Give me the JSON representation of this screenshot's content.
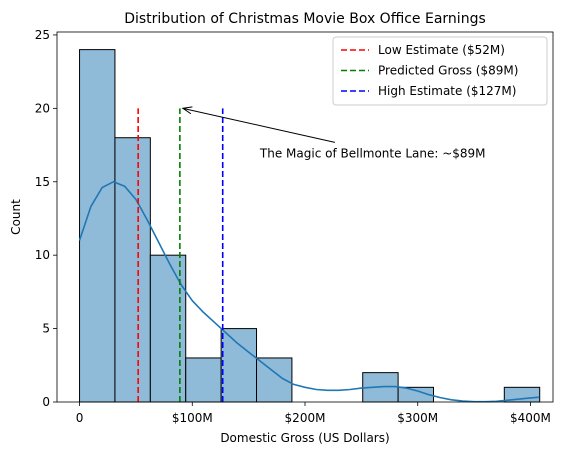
{
  "chart_data": {
    "type": "bar",
    "title": "Distribution of Christmas Movie Box Office Earnings",
    "xlabel": "Domestic Gross (US Dollars)",
    "ylabel": "Count",
    "xlim": [
      -20,
      420
    ],
    "ylim": [
      0,
      25.2
    ],
    "x_ticks": [
      {
        "value": 0,
        "label": "0"
      },
      {
        "value": 100,
        "label": "$100M"
      },
      {
        "value": 200,
        "label": "$200M"
      },
      {
        "value": 300,
        "label": "$300M"
      },
      {
        "value": 400,
        "label": "$400M"
      }
    ],
    "y_ticks": [
      {
        "value": 0,
        "label": "0"
      },
      {
        "value": 5,
        "label": "5"
      },
      {
        "value": 10,
        "label": "10"
      },
      {
        "value": 15,
        "label": "15"
      },
      {
        "value": 20,
        "label": "20"
      },
      {
        "value": 25,
        "label": "25"
      }
    ],
    "histogram": {
      "bin_edges": [
        0,
        31.4,
        62.8,
        94.2,
        125.6,
        157.0,
        188.4,
        219.8,
        251.2,
        282.6,
        314.0,
        345.4,
        376.8,
        408.2
      ],
      "counts": [
        24,
        18,
        10,
        3,
        5,
        3,
        0,
        0,
        2,
        1,
        0,
        0,
        1
      ],
      "color": "#8fbbd9",
      "edge_color": "#000000"
    },
    "kde": {
      "color": "#1f77b4",
      "x": [
        0,
        10,
        20,
        30,
        40,
        50,
        60,
        70,
        80,
        90,
        100,
        110,
        120,
        130,
        140,
        150,
        160,
        170,
        180,
        190,
        200,
        210,
        220,
        230,
        240,
        250,
        260,
        270,
        280,
        290,
        300,
        310,
        320,
        330,
        340,
        350,
        360,
        370,
        380,
        390,
        400,
        408
      ],
      "y": [
        11,
        13.3,
        14.6,
        15.0,
        14.7,
        13.8,
        12.4,
        10.9,
        9.4,
        8.0,
        6.9,
        6.1,
        5.4,
        4.7,
        4.0,
        3.4,
        2.8,
        2.2,
        1.6,
        1.2,
        1.0,
        0.85,
        0.8,
        0.8,
        0.85,
        0.95,
        1.0,
        1.05,
        1.05,
        0.95,
        0.75,
        0.5,
        0.3,
        0.15,
        0.06,
        0.02,
        0.02,
        0.05,
        0.12,
        0.2,
        0.28,
        0.33
      ]
    },
    "reference_lines": [
      {
        "label": "Low Estimate ($52M)",
        "x": 52,
        "color": "#ff0000",
        "y_top": 20
      },
      {
        "label": "Predicted Gross ($89M)",
        "x": 89,
        "color": "#008000",
        "y_top": 20
      },
      {
        "label": "High Estimate ($127M)",
        "x": 127,
        "color": "#0000ff",
        "y_top": 20
      }
    ],
    "annotation": {
      "text": "The Magic of Bellmonte Lane: ~$89M",
      "target": {
        "x": 89,
        "y": 20
      },
      "text_anchor": {
        "x": 160,
        "y": 17
      }
    },
    "legend_position": "top-right",
    "grid": false
  }
}
